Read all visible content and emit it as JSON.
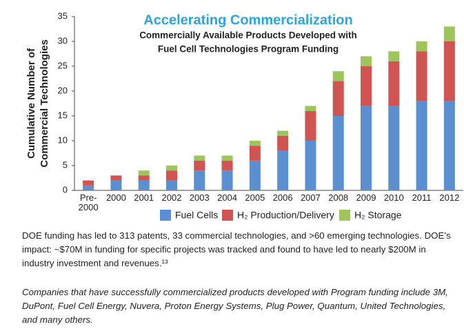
{
  "chart_data": {
    "type": "bar",
    "stacked": true,
    "title": "Accelerating Commercialization",
    "subtitle": [
      "Commercially Available Products Developed with",
      "Fuel Cell Technologies Program Funding"
    ],
    "ylabel": [
      "Cumulative Number of",
      "Commercial Technologies"
    ],
    "categories": [
      "Pre-\n2000",
      "2000",
      "2001",
      "2002",
      "2003",
      "2004",
      "2005",
      "2006",
      "2007",
      "2008",
      "2009",
      "2010",
      "2011",
      "2012"
    ],
    "series": [
      {
        "name": "Fuel Cells",
        "color": "#5a8fd2",
        "values": [
          1,
          2,
          2,
          2,
          4,
          4,
          6,
          8,
          10,
          15,
          17,
          17,
          18,
          18
        ]
      },
      {
        "name": "H₂ Production/Delivery",
        "color": "#cf5452",
        "values": [
          1,
          1,
          1,
          2,
          2,
          2,
          3,
          3,
          6,
          7,
          8,
          9,
          10,
          12
        ]
      },
      {
        "name": "H₂ Storage",
        "color": "#9dc55c",
        "values": [
          0,
          0,
          1,
          1,
          1,
          1,
          1,
          1,
          1,
          2,
          2,
          2,
          2,
          3
        ]
      }
    ],
    "ylim": [
      0,
      35
    ],
    "yticks": [
      0,
      5,
      10,
      15,
      20,
      25,
      30,
      35
    ],
    "grid": false,
    "legend": "bottom"
  },
  "paragraphs": [
    "DOE funding has led to 313 patents, 33 commercial technologies, and >60 emerging technologies. DOE’s impact: ~$70M in funding for specific projects was tracked and found to have led to nearly $200M in industry investment and revenues.¹³",
    "Companies that have successfully commercialized products developed with Program funding include  3M, DuPont, Fuel Cell Energy, Nuvera, Proton Energy Systems, Plug Power, Quantum, United Technologies, and many others."
  ]
}
